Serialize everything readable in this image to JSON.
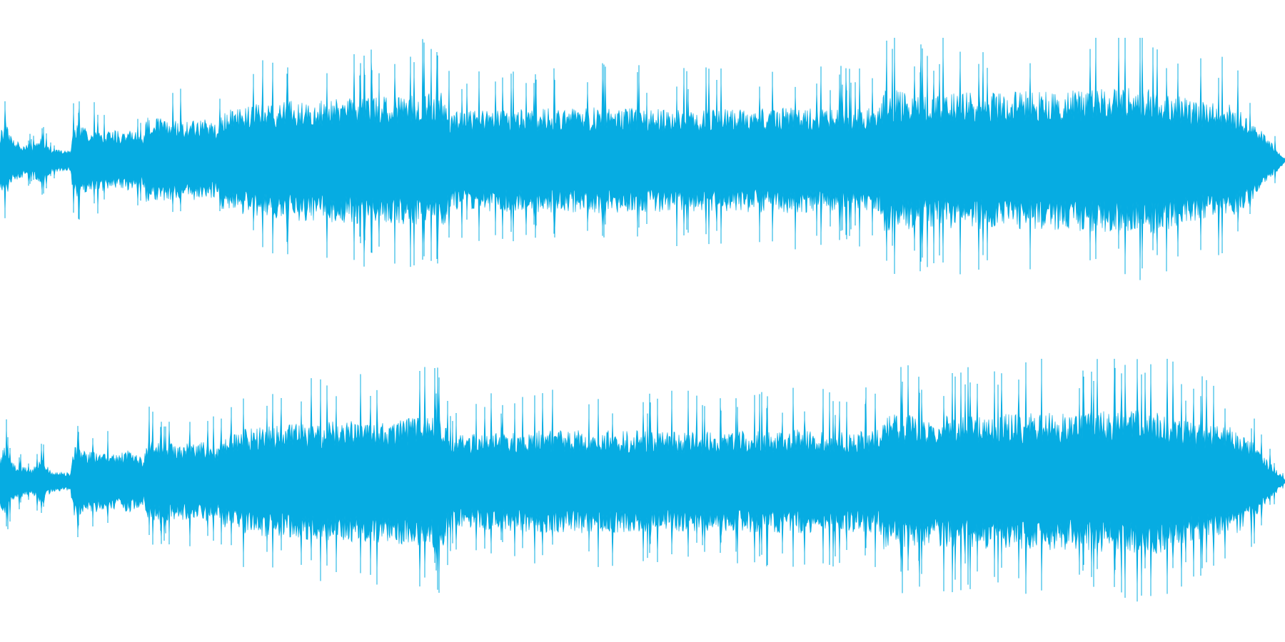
{
  "waveform": {
    "color": "#06ACE2",
    "background": "#FFFFFF",
    "channel_count": 2,
    "channels": [
      {
        "name": "",
        "envelope": [
          [
            0.0,
            0.25
          ],
          [
            0.004,
            0.35
          ],
          [
            0.01,
            0.18
          ],
          [
            0.025,
            0.12
          ],
          [
            0.032,
            0.22
          ],
          [
            0.04,
            0.1
          ],
          [
            0.05,
            0.09
          ],
          [
            0.055,
            0.09
          ],
          [
            0.057,
            0.32
          ],
          [
            0.07,
            0.28
          ],
          [
            0.09,
            0.26
          ],
          [
            0.1,
            0.27
          ],
          [
            0.112,
            0.22
          ],
          [
            0.114,
            0.38
          ],
          [
            0.14,
            0.34
          ],
          [
            0.16,
            0.36
          ],
          [
            0.17,
            0.3
          ],
          [
            0.172,
            0.42
          ],
          [
            0.2,
            0.5
          ],
          [
            0.23,
            0.52
          ],
          [
            0.26,
            0.54
          ],
          [
            0.29,
            0.55
          ],
          [
            0.32,
            0.56
          ],
          [
            0.345,
            0.6
          ],
          [
            0.35,
            0.42
          ],
          [
            0.38,
            0.44
          ],
          [
            0.42,
            0.45
          ],
          [
            0.46,
            0.46
          ],
          [
            0.5,
            0.45
          ],
          [
            0.54,
            0.44
          ],
          [
            0.58,
            0.45
          ],
          [
            0.62,
            0.46
          ],
          [
            0.66,
            0.45
          ],
          [
            0.685,
            0.46
          ],
          [
            0.688,
            0.62
          ],
          [
            0.72,
            0.58
          ],
          [
            0.76,
            0.6
          ],
          [
            0.8,
            0.6
          ],
          [
            0.84,
            0.61
          ],
          [
            0.88,
            0.63
          ],
          [
            0.9,
            0.64
          ],
          [
            0.92,
            0.55
          ],
          [
            0.94,
            0.5
          ],
          [
            0.96,
            0.48
          ],
          [
            0.975,
            0.35
          ],
          [
            0.99,
            0.15
          ],
          [
            1.0,
            0.02
          ]
        ]
      },
      {
        "name": "",
        "envelope": [
          [
            0.0,
            0.22
          ],
          [
            0.004,
            0.33
          ],
          [
            0.01,
            0.16
          ],
          [
            0.025,
            0.11
          ],
          [
            0.032,
            0.2
          ],
          [
            0.04,
            0.09
          ],
          [
            0.05,
            0.08
          ],
          [
            0.055,
            0.08
          ],
          [
            0.057,
            0.3
          ],
          [
            0.07,
            0.27
          ],
          [
            0.09,
            0.26
          ],
          [
            0.1,
            0.27
          ],
          [
            0.112,
            0.2
          ],
          [
            0.114,
            0.36
          ],
          [
            0.14,
            0.33
          ],
          [
            0.16,
            0.35
          ],
          [
            0.17,
            0.3
          ],
          [
            0.172,
            0.4
          ],
          [
            0.2,
            0.48
          ],
          [
            0.23,
            0.5
          ],
          [
            0.26,
            0.52
          ],
          [
            0.29,
            0.53
          ],
          [
            0.32,
            0.55
          ],
          [
            0.345,
            0.58
          ],
          [
            0.35,
            0.4
          ],
          [
            0.38,
            0.42
          ],
          [
            0.42,
            0.44
          ],
          [
            0.46,
            0.45
          ],
          [
            0.5,
            0.44
          ],
          [
            0.54,
            0.43
          ],
          [
            0.58,
            0.44
          ],
          [
            0.62,
            0.45
          ],
          [
            0.66,
            0.44
          ],
          [
            0.685,
            0.45
          ],
          [
            0.688,
            0.6
          ],
          [
            0.72,
            0.56
          ],
          [
            0.76,
            0.58
          ],
          [
            0.8,
            0.59
          ],
          [
            0.84,
            0.6
          ],
          [
            0.88,
            0.62
          ],
          [
            0.9,
            0.63
          ],
          [
            0.92,
            0.54
          ],
          [
            0.94,
            0.49
          ],
          [
            0.96,
            0.47
          ],
          [
            0.975,
            0.34
          ],
          [
            0.99,
            0.14
          ],
          [
            1.0,
            0.02
          ]
        ]
      }
    ]
  }
}
